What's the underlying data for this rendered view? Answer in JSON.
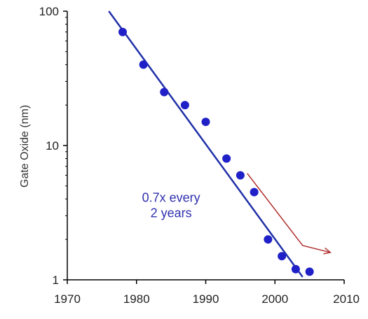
{
  "chart_data": {
    "type": "scatter",
    "title": "",
    "xlabel": "",
    "ylabel": "Gate Oxide (nm)",
    "xlim": [
      1970,
      2010
    ],
    "ylim": [
      1,
      100
    ],
    "yscale": "log",
    "x_ticks": [
      "1970",
      "1980",
      "1990",
      "2000",
      "2010"
    ],
    "y_ticks": [
      "1",
      "10",
      "100"
    ],
    "grid": false,
    "legend": "none",
    "points": [
      {
        "x": 1978,
        "y": 70
      },
      {
        "x": 1981,
        "y": 40
      },
      {
        "x": 1984,
        "y": 25
      },
      {
        "x": 1987,
        "y": 20
      },
      {
        "x": 1990,
        "y": 15
      },
      {
        "x": 1993,
        "y": 8
      },
      {
        "x": 1995,
        "y": 6
      },
      {
        "x": 1997,
        "y": 4.5
      },
      {
        "x": 1999,
        "y": 2
      },
      {
        "x": 2001,
        "y": 1.5
      },
      {
        "x": 2003,
        "y": 1.2
      },
      {
        "x": 2005,
        "y": 1.15
      }
    ],
    "trend_line": {
      "x": [
        1976,
        2004
      ],
      "y": [
        100,
        1.05
      ]
    },
    "projection": {
      "x": [
        1996,
        2004,
        2008
      ],
      "y": [
        6.2,
        1.8,
        1.6
      ]
    },
    "annotation": {
      "line1": "0.7x every",
      "line2": "2 years",
      "x": 1985,
      "y": 3.8
    },
    "colors": {
      "points": "#2020c8",
      "trend": "#2030a8",
      "projection": "#b03030",
      "annotation": "#3030b0",
      "axis": "#000000"
    }
  }
}
